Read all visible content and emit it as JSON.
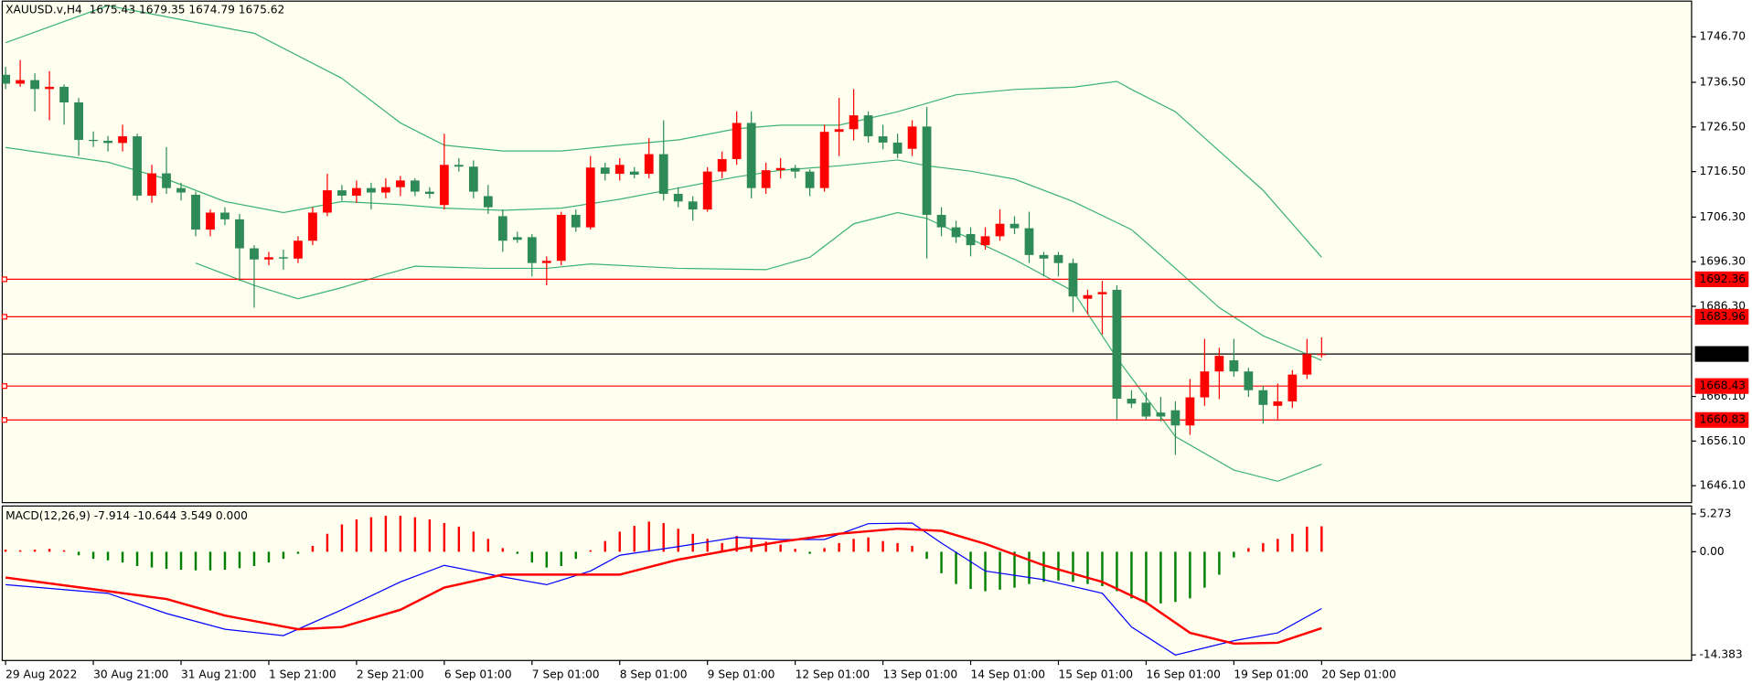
{
  "chart_data": [
    {
      "type": "candlestick",
      "title": "XAUUSD.v,H4  1675.43 1679.35 1674.79 1675.62",
      "categories": [
        "29 Aug 2022",
        null,
        null,
        null,
        null,
        null,
        "30 Aug 21:00",
        null,
        null,
        null,
        null,
        null,
        "31 Aug 21:00",
        null,
        null,
        null,
        null,
        null,
        "1 Sep 21:00",
        null,
        null,
        null,
        null,
        null,
        "2 Sep 21:00",
        null,
        null,
        null,
        null,
        null,
        "6 Sep 01:00",
        null,
        null,
        null,
        null,
        null,
        "7 Sep 01:00",
        null,
        null,
        null,
        null,
        null,
        "8 Sep 01:00",
        null,
        null,
        null,
        null,
        null,
        "9 Sep 01:00",
        null,
        null,
        null,
        null,
        null,
        "12 Sep 01:00",
        null,
        null,
        null,
        null,
        null,
        "13 Sep 01:00",
        null,
        null,
        null,
        null,
        null,
        "14 Sep 01:00",
        null,
        null,
        null,
        null,
        null,
        "15 Sep 01:00",
        null,
        null,
        null,
        null,
        null,
        "16 Sep 01:00",
        null,
        null,
        null,
        null,
        null,
        "19 Sep 01:00",
        null,
        null,
        null,
        null,
        null,
        "20 Sep 01:00"
      ],
      "ohlc": [
        [
          1738.2,
          1740.0,
          1735.0,
          1736.2
        ],
        [
          1736.2,
          1741.5,
          1735.5,
          1737.0
        ],
        [
          1737.0,
          1738.5,
          1730.0,
          1735.0
        ],
        [
          1735.0,
          1739.0,
          1728.0,
          1735.5
        ],
        [
          1735.5,
          1736.0,
          1727.0,
          1732.0
        ],
        [
          1732.0,
          1733.0,
          1720.0,
          1723.6
        ],
        [
          1723.6,
          1725.5,
          1722.0,
          1723.4
        ],
        [
          1723.4,
          1724.5,
          1721.0,
          1722.9
        ],
        [
          1722.9,
          1727.0,
          1721.0,
          1724.4
        ],
        [
          1724.4,
          1725.0,
          1710.0,
          1711.1
        ],
        [
          1711.1,
          1718.0,
          1709.5,
          1716.1
        ],
        [
          1716.1,
          1722.0,
          1711.5,
          1712.8
        ],
        [
          1712.8,
          1714.0,
          1710.0,
          1711.8
        ],
        [
          1711.3,
          1712.0,
          1702.0,
          1703.5
        ],
        [
          1703.5,
          1708.0,
          1702.0,
          1707.3
        ],
        [
          1707.3,
          1708.5,
          1704.5,
          1705.8
        ],
        [
          1705.8,
          1707.0,
          1692.0,
          1699.3
        ],
        [
          1699.3,
          1700.0,
          1686.0,
          1696.8
        ],
        [
          1696.8,
          1698.5,
          1695.5,
          1697.3
        ],
        [
          1697.3,
          1699.0,
          1694.5,
          1697.0
        ],
        [
          1697.0,
          1702.0,
          1696.0,
          1701.0
        ],
        [
          1701.0,
          1708.5,
          1700.0,
          1707.3
        ],
        [
          1707.3,
          1716.0,
          1706.5,
          1712.3
        ],
        [
          1712.3,
          1713.5,
          1710.0,
          1711.1
        ],
        [
          1711.1,
          1714.5,
          1709.5,
          1712.8
        ],
        [
          1712.8,
          1714.0,
          1708.0,
          1711.8
        ],
        [
          1711.8,
          1715.0,
          1710.5,
          1713.0
        ],
        [
          1713.0,
          1715.5,
          1711.0,
          1714.5
        ],
        [
          1714.5,
          1715.0,
          1711.0,
          1712.0
        ],
        [
          1712.0,
          1713.0,
          1710.5,
          1711.5
        ],
        [
          1709.0,
          1725.0,
          1708.0,
          1718.0
        ],
        [
          1718.0,
          1719.5,
          1716.5,
          1717.6
        ],
        [
          1717.6,
          1719.0,
          1710.5,
          1712.0
        ],
        [
          1711.0,
          1713.5,
          1707.0,
          1708.5
        ],
        [
          1706.5,
          1708.0,
          1698.5,
          1701.0
        ],
        [
          1701.8,
          1703.0,
          1700.5,
          1701.2
        ],
        [
          1701.8,
          1702.5,
          1693.0,
          1696.0
        ],
        [
          1696.0,
          1697.5,
          1691.0,
          1696.5
        ],
        [
          1696.5,
          1707.5,
          1695.5,
          1706.8
        ],
        [
          1706.8,
          1708.0,
          1703.0,
          1704.0
        ],
        [
          1704.0,
          1720.0,
          1703.5,
          1717.4
        ],
        [
          1717.4,
          1718.5,
          1714.5,
          1716.0
        ],
        [
          1716.0,
          1719.5,
          1714.5,
          1718.0
        ],
        [
          1716.5,
          1717.5,
          1715.0,
          1715.8
        ],
        [
          1716.0,
          1724.0,
          1715.0,
          1720.4
        ],
        [
          1720.4,
          1728.0,
          1710.0,
          1711.5
        ],
        [
          1711.5,
          1713.0,
          1708.5,
          1709.8
        ],
        [
          1709.8,
          1711.0,
          1705.5,
          1708.0
        ],
        [
          1708.0,
          1717.5,
          1707.5,
          1716.5
        ],
        [
          1716.5,
          1721.0,
          1715.0,
          1719.3
        ],
        [
          1719.3,
          1730.0,
          1718.0,
          1727.4
        ],
        [
          1727.4,
          1730.0,
          1710.5,
          1712.8
        ],
        [
          1712.8,
          1718.5,
          1711.5,
          1716.8
        ],
        [
          1716.8,
          1719.5,
          1715.0,
          1717.3
        ],
        [
          1717.3,
          1718.0,
          1715.0,
          1716.5
        ],
        [
          1716.5,
          1717.0,
          1711.0,
          1712.8
        ],
        [
          1712.8,
          1727.0,
          1712.0,
          1725.4
        ],
        [
          1725.4,
          1733.0,
          1720.0,
          1726.0
        ],
        [
          1726.0,
          1735.0,
          1723.5,
          1729.1
        ],
        [
          1729.1,
          1730.0,
          1723.0,
          1724.4
        ],
        [
          1724.4,
          1727.0,
          1721.5,
          1723.0
        ],
        [
          1723.0,
          1725.0,
          1719.5,
          1720.5
        ],
        [
          1721.6,
          1728.0,
          1720.0,
          1726.6
        ],
        [
          1726.6,
          1731.0,
          1697.0,
          1706.8
        ],
        [
          1706.8,
          1708.5,
          1702.0,
          1704.0
        ],
        [
          1704.0,
          1705.5,
          1700.5,
          1701.8
        ],
        [
          1702.5,
          1704.0,
          1697.5,
          1700.0
        ],
        [
          1700.0,
          1704.0,
          1699.0,
          1702.0
        ],
        [
          1702.0,
          1708.0,
          1701.0,
          1704.8
        ],
        [
          1704.8,
          1706.5,
          1702.5,
          1703.8
        ],
        [
          1703.8,
          1707.5,
          1696.0,
          1697.8
        ],
        [
          1697.8,
          1698.5,
          1693.0,
          1697.0
        ],
        [
          1697.8,
          1698.5,
          1693.0,
          1696.0
        ],
        [
          1696.0,
          1697.0,
          1685.0,
          1688.5
        ],
        [
          1688.0,
          1690.0,
          1684.5,
          1688.8
        ],
        [
          1689.0,
          1692.0,
          1680.0,
          1689.5
        ],
        [
          1690.0,
          1691.0,
          1661.0,
          1665.6
        ],
        [
          1665.6,
          1667.5,
          1663.5,
          1664.5
        ],
        [
          1664.7,
          1667.0,
          1661.0,
          1661.6
        ],
        [
          1662.5,
          1666.0,
          1660.5,
          1661.6
        ],
        [
          1663.0,
          1665.0,
          1653.0,
          1659.6
        ],
        [
          1659.6,
          1670.0,
          1657.5,
          1665.9
        ],
        [
          1665.9,
          1679.0,
          1664.0,
          1671.7
        ],
        [
          1671.7,
          1677.0,
          1665.5,
          1675.2
        ],
        [
          1674.2,
          1679.0,
          1670.5,
          1671.7
        ],
        [
          1671.7,
          1672.5,
          1666.0,
          1667.5
        ],
        [
          1667.5,
          1668.5,
          1660.0,
          1664.2
        ],
        [
          1664.0,
          1669.0,
          1661.0,
          1665.0
        ],
        [
          1665.0,
          1672.0,
          1663.5,
          1671.0
        ],
        [
          1671.0,
          1679.0,
          1670.0,
          1675.6
        ],
        [
          1675.43,
          1679.35,
          1674.79,
          1675.62
        ]
      ],
      "bull_color": "#ff0000",
      "bear_color": "#2e8b57",
      "bands": [
        {
          "color": "#3cb371",
          "x": [
            0,
            7,
            11,
            15,
            17,
            23,
            27,
            30,
            34,
            38,
            42,
            46,
            50,
            53,
            57,
            61,
            65,
            69,
            73,
            76,
            77,
            80,
            83,
            86,
            90
          ],
          "values": [
            1745.4,
            1753.7,
            1751.2,
            1748.7,
            1747.5,
            1737.4,
            1727.4,
            1722.4,
            1721.1,
            1721.1,
            1722.4,
            1723.6,
            1726.1,
            1726.9,
            1726.9,
            1729.9,
            1733.7,
            1734.9,
            1735.4,
            1736.7,
            1734.9,
            1729.9,
            1721.1,
            1712.3,
            1697.3
          ]
        },
        {
          "color": "#3cb371",
          "x": [
            0,
            7,
            11,
            15,
            19,
            23,
            27,
            30,
            34,
            38,
            42,
            46,
            50,
            53,
            57,
            61,
            63,
            66,
            69,
            73,
            77,
            80,
            83,
            86,
            90
          ],
          "values": [
            1721.9,
            1718.6,
            1714.8,
            1709.8,
            1707.3,
            1709.8,
            1709.1,
            1708.3,
            1707.8,
            1708.3,
            1710.3,
            1712.8,
            1715.3,
            1716.8,
            1717.8,
            1719.1,
            1717.8,
            1716.6,
            1714.8,
            1709.8,
            1703.5,
            1694.8,
            1686.0,
            1679.7,
            1674.2
          ]
        },
        {
          "color": "#3cb371",
          "x": [
            13,
            17,
            20,
            23,
            26,
            28,
            33,
            37,
            40,
            46,
            52,
            55,
            58,
            61,
            63,
            69,
            73,
            76,
            80,
            84,
            87,
            90
          ],
          "values": [
            1696.0,
            1691.0,
            1688.0,
            1690.5,
            1693.5,
            1695.3,
            1694.8,
            1694.8,
            1695.8,
            1694.8,
            1694.5,
            1697.3,
            1704.8,
            1707.3,
            1706.0,
            1696.8,
            1689.7,
            1674.7,
            1657.1,
            1649.6,
            1647.1,
            1650.9
          ]
        }
      ],
      "levels": [
        1692.36,
        1683.96,
        1668.43,
        1660.83
      ],
      "level_color": "#ff0000",
      "last_price": 1675.62,
      "last_color": "#000000",
      "ylim": [
        1642.3,
        1754.7
      ],
      "yticks": [
        {
          "value": 1746.7,
          "label": "1746.70"
        },
        {
          "value": 1736.5,
          "label": "1736.50"
        },
        {
          "value": 1726.5,
          "label": "1726.50"
        },
        {
          "value": 1716.5,
          "label": "1716.50"
        },
        {
          "value": 1706.3,
          "label": "1706.30"
        },
        {
          "value": 1696.3,
          "label": "1696.30"
        },
        {
          "value": 1686.3,
          "label": "1686.30"
        },
        {
          "value": 1666.1,
          "label": "1666.10"
        },
        {
          "value": 1656.1,
          "label": "1656.10"
        },
        {
          "value": 1646.1,
          "label": "1646.10"
        }
      ]
    },
    {
      "type": "macd",
      "title": "MACD(12,26,9) -7.914 -10.644 3.549 0.000",
      "histogram": [
        0.3,
        0.2,
        0.3,
        0.4,
        0.2,
        -0.5,
        -1.0,
        -1.2,
        -1.5,
        -2,
        -2.2,
        -2.4,
        -2.5,
        -2.6,
        -2.6,
        -2.5,
        -2.3,
        -2.0,
        -1.5,
        -1.0,
        -0.3,
        0.8,
        2.5,
        3.8,
        4.5,
        4.8,
        5.0,
        5.0,
        4.8,
        4.5,
        4.0,
        3.5,
        2.8,
        1.8,
        0.5,
        -0.3,
        -1.5,
        -2.2,
        -2.0,
        -1.0,
        0.2,
        1.5,
        2.8,
        3.6,
        4.2,
        4.0,
        3.2,
        2.5,
        1.8,
        1.2,
        2.2,
        1.8,
        1.4,
        1.0,
        0.4,
        -0.3,
        0.5,
        1.2,
        1.8,
        2.0,
        1.5,
        1.2,
        0.8,
        -1.0,
        -3.0,
        -4.5,
        -5.2,
        -5.5,
        -5.3,
        -5.0,
        -4.5,
        -4.2,
        -4.0,
        -4.2,
        -4.5,
        -4.8,
        -5.5,
        -6.5,
        -7.0,
        -7.2,
        -7.0,
        -6.5,
        -5.0,
        -3.2,
        -0.8,
        0.5,
        1.2,
        1.8,
        2.5,
        3.5,
        3.549
      ],
      "pos_color": "#ff0000",
      "neg_color": "#008000",
      "lines": [
        {
          "color": "#0000ff",
          "width": 1,
          "x": [
            0,
            7,
            11,
            15,
            19,
            23,
            27,
            30,
            34,
            37,
            40,
            42,
            46,
            50,
            53,
            56,
            59,
            62,
            64,
            67,
            71,
            75,
            77,
            80,
            84,
            87,
            90
          ],
          "values": [
            -4.6,
            -5.8,
            -8.6,
            -10.8,
            -11.7,
            -8.1,
            -4.2,
            -1.9,
            -3.5,
            -4.6,
            -2.7,
            -0.5,
            0.7,
            2.0,
            1.7,
            1.7,
            3.9,
            4.0,
            1.2,
            -2.7,
            -3.9,
            -5.8,
            -10.5,
            -14.4,
            -12.4,
            -11.3,
            -7.914
          ]
        },
        {
          "color": "#ff0000",
          "width": 2,
          "x": [
            0,
            7,
            11,
            15,
            20,
            23,
            27,
            30,
            34,
            38,
            42,
            46,
            50,
            53,
            57,
            61,
            64,
            67,
            71,
            75,
            78,
            81,
            84,
            87,
            90
          ],
          "values": [
            -3.6,
            -5.5,
            -6.6,
            -8.9,
            -10.8,
            -10.5,
            -8.1,
            -5.0,
            -3.2,
            -3.2,
            -3.2,
            -1.1,
            0.4,
            1.4,
            2.5,
            3.2,
            2.9,
            1.1,
            -1.9,
            -4.2,
            -7.1,
            -11.3,
            -12.8,
            -12.7,
            -10.644
          ]
        }
      ],
      "ylim": [
        -15.16,
        6.37
      ],
      "yticks": [
        5.273,
        {
          "value": 0,
          "label": "0.00"
        },
        -14.383
      ]
    }
  ]
}
